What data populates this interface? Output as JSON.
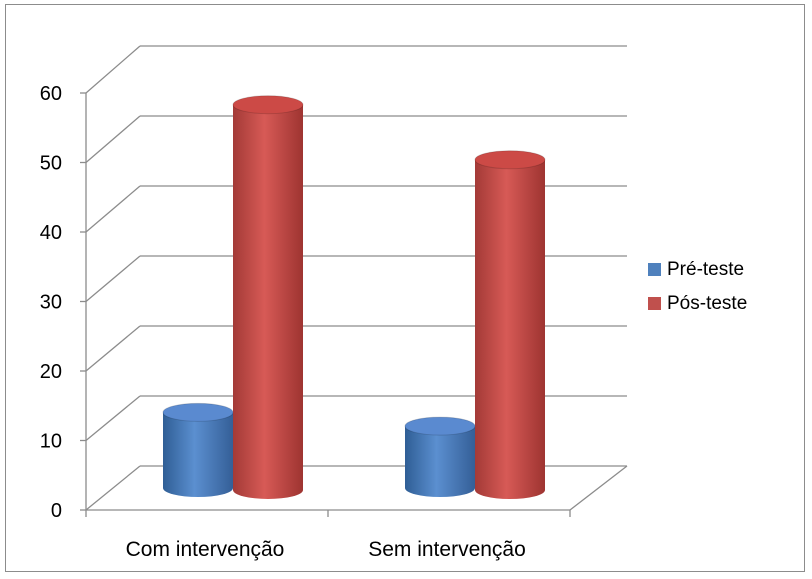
{
  "chart_data": {
    "type": "bar",
    "categories": [
      "Com intervenção",
      "Sem intervenção"
    ],
    "series": [
      {
        "name": "Pré-teste",
        "values": [
          11,
          9
        ],
        "color": "#4f81bd"
      },
      {
        "name": "Pós-teste",
        "values": [
          56,
          48
        ],
        "color": "#c0504d"
      }
    ],
    "ylim": [
      0,
      60
    ],
    "yticks": [
      "0",
      "10",
      "20",
      "30",
      "40",
      "50",
      "60"
    ],
    "grid": true,
    "legend": "right",
    "style": "3d-cylinder"
  }
}
